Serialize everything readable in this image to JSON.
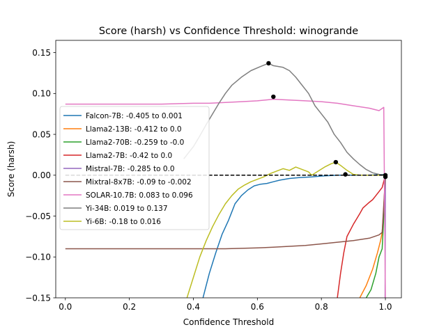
{
  "chart_data": {
    "type": "line",
    "title": "Score (harsh) vs Confidence Threshold: winogrande",
    "xlabel": "Confidence Threshold",
    "ylabel": "Score (harsh)",
    "xlim": [
      -0.03,
      1.05
    ],
    "ylim": [
      -0.15,
      0.165
    ],
    "xticks": [
      0.0,
      0.2,
      0.4,
      0.6,
      0.8,
      1.0
    ],
    "xtick_labels": [
      "0.0",
      "0.2",
      "0.4",
      "0.6",
      "0.8",
      "1.0"
    ],
    "yticks": [
      -0.15,
      -0.1,
      -0.05,
      0.0,
      0.05,
      0.1,
      0.15
    ],
    "ytick_labels": [
      "−0.15",
      "−0.10",
      "−0.05",
      "0.00",
      "0.05",
      "0.10",
      "0.15"
    ],
    "grid": false,
    "legend_position": "center-left",
    "reference_line": {
      "y": 0.0,
      "x_range": [
        0.0,
        1.0
      ],
      "style": "dashed",
      "color": "#000000"
    },
    "series": [
      {
        "name": "Falcon-7B: -0.405 to 0.001",
        "color": "#1f77b4",
        "points": [
          [
            0.43,
            -0.15
          ],
          [
            0.45,
            -0.12
          ],
          [
            0.47,
            -0.095
          ],
          [
            0.49,
            -0.072
          ],
          [
            0.51,
            -0.055
          ],
          [
            0.52,
            -0.045
          ],
          [
            0.53,
            -0.035
          ],
          [
            0.55,
            -0.025
          ],
          [
            0.57,
            -0.018
          ],
          [
            0.59,
            -0.013
          ],
          [
            0.61,
            -0.011
          ],
          [
            0.63,
            -0.01
          ],
          [
            0.65,
            -0.008
          ],
          [
            0.67,
            -0.006
          ],
          [
            0.7,
            -0.004
          ],
          [
            0.73,
            -0.003
          ],
          [
            0.77,
            -0.002
          ],
          [
            0.8,
            -0.001
          ],
          [
            0.85,
            0.0
          ],
          [
            0.9,
            0.0
          ],
          [
            0.95,
            0.0
          ],
          [
            1.0,
            0.001
          ]
        ]
      },
      {
        "name": "Llama2-13B: -0.412 to 0.0",
        "color": "#ff7f0e",
        "points": [
          [
            0.92,
            -0.15
          ],
          [
            0.94,
            -0.135
          ],
          [
            0.96,
            -0.115
          ],
          [
            0.975,
            -0.095
          ],
          [
            0.985,
            -0.08
          ],
          [
            0.99,
            -0.07
          ],
          [
            0.995,
            -0.04
          ],
          [
            1.0,
            0.0
          ]
        ]
      },
      {
        "name": "Llama2-70B: -0.259 to -0.0",
        "color": "#2ca02c",
        "points": [
          [
            0.94,
            -0.15
          ],
          [
            0.955,
            -0.14
          ],
          [
            0.97,
            -0.12
          ],
          [
            0.98,
            -0.1
          ],
          [
            0.99,
            -0.09
          ],
          [
            0.995,
            -0.05
          ],
          [
            1.0,
            -0.0
          ]
        ]
      },
      {
        "name": "Llama2-7B: -0.42 to 0.0",
        "color": "#d62728",
        "points": [
          [
            0.85,
            -0.15
          ],
          [
            0.86,
            -0.12
          ],
          [
            0.87,
            -0.095
          ],
          [
            0.88,
            -0.075
          ],
          [
            0.9,
            -0.06
          ],
          [
            0.92,
            -0.047
          ],
          [
            0.93,
            -0.04
          ],
          [
            0.95,
            -0.033
          ],
          [
            0.96,
            -0.03
          ],
          [
            0.97,
            -0.025
          ],
          [
            0.98,
            -0.02
          ],
          [
            0.99,
            -0.015
          ],
          [
            1.0,
            0.0
          ]
        ]
      },
      {
        "name": "Mistral-7B: -0.285 to 0.0",
        "color": "#9467bd",
        "points": [
          [
            0.999,
            -0.15
          ],
          [
            1.0,
            0.0
          ]
        ]
      },
      {
        "name": "Mixtral-8x7B: -0.09 to -0.002",
        "color": "#8c564b",
        "points": [
          [
            0.0,
            -0.09
          ],
          [
            0.1,
            -0.09
          ],
          [
            0.2,
            -0.09
          ],
          [
            0.3,
            -0.09
          ],
          [
            0.4,
            -0.09
          ],
          [
            0.5,
            -0.09
          ],
          [
            0.6,
            -0.089
          ],
          [
            0.65,
            -0.088
          ],
          [
            0.7,
            -0.087
          ],
          [
            0.75,
            -0.086
          ],
          [
            0.8,
            -0.084
          ],
          [
            0.85,
            -0.082
          ],
          [
            0.9,
            -0.08
          ],
          [
            0.95,
            -0.077
          ],
          [
            0.98,
            -0.073
          ],
          [
            0.99,
            -0.07
          ],
          [
            1.0,
            -0.002
          ]
        ]
      },
      {
        "name": "SOLAR-10.7B: 0.083 to 0.096",
        "color": "#e377c2",
        "points": [
          [
            0.0,
            0.087
          ],
          [
            0.1,
            0.087
          ],
          [
            0.2,
            0.087
          ],
          [
            0.3,
            0.087
          ],
          [
            0.4,
            0.088
          ],
          [
            0.45,
            0.088
          ],
          [
            0.5,
            0.089
          ],
          [
            0.55,
            0.09
          ],
          [
            0.6,
            0.091
          ],
          [
            0.65,
            0.093
          ],
          [
            0.7,
            0.092
          ],
          [
            0.75,
            0.091
          ],
          [
            0.8,
            0.09
          ],
          [
            0.85,
            0.088
          ],
          [
            0.9,
            0.085
          ],
          [
            0.95,
            0.082
          ],
          [
            0.98,
            0.079
          ],
          [
            0.995,
            0.083
          ],
          [
            1.0,
            -0.15
          ]
        ]
      },
      {
        "name": "Yi-34B: 0.019 to 0.137",
        "color": "#7f7f7f",
        "points": [
          [
            0.37,
            0.02
          ],
          [
            0.4,
            0.035
          ],
          [
            0.42,
            0.048
          ],
          [
            0.44,
            0.062
          ],
          [
            0.46,
            0.075
          ],
          [
            0.48,
            0.088
          ],
          [
            0.5,
            0.1
          ],
          [
            0.52,
            0.11
          ],
          [
            0.55,
            0.12
          ],
          [
            0.58,
            0.128
          ],
          [
            0.61,
            0.133
          ],
          [
            0.635,
            0.137
          ],
          [
            0.65,
            0.134
          ],
          [
            0.68,
            0.132
          ],
          [
            0.7,
            0.128
          ],
          [
            0.72,
            0.12
          ],
          [
            0.74,
            0.11
          ],
          [
            0.76,
            0.1
          ],
          [
            0.78,
            0.085
          ],
          [
            0.8,
            0.075
          ],
          [
            0.82,
            0.065
          ],
          [
            0.84,
            0.05
          ],
          [
            0.86,
            0.04
          ],
          [
            0.88,
            0.028
          ],
          [
            0.9,
            0.02
          ],
          [
            0.92,
            0.013
          ],
          [
            0.94,
            0.007
          ],
          [
            0.96,
            0.003
          ],
          [
            0.98,
            0.001
          ],
          [
            1.0,
            0.0
          ]
        ]
      },
      {
        "name": "Yi-6B: -0.18 to 0.016",
        "color": "#bcbd22",
        "points": [
          [
            0.38,
            -0.15
          ],
          [
            0.4,
            -0.125
          ],
          [
            0.42,
            -0.1
          ],
          [
            0.44,
            -0.08
          ],
          [
            0.46,
            -0.063
          ],
          [
            0.48,
            -0.048
          ],
          [
            0.5,
            -0.035
          ],
          [
            0.52,
            -0.025
          ],
          [
            0.54,
            -0.017
          ],
          [
            0.56,
            -0.012
          ],
          [
            0.58,
            -0.008
          ],
          [
            0.6,
            -0.005
          ],
          [
            0.62,
            -0.002
          ],
          [
            0.64,
            0.002
          ],
          [
            0.66,
            0.005
          ],
          [
            0.68,
            0.008
          ],
          [
            0.7,
            0.006
          ],
          [
            0.72,
            0.01
          ],
          [
            0.74,
            0.007
          ],
          [
            0.76,
            0.004
          ],
          [
            0.77,
            0.0
          ],
          [
            0.79,
            0.005
          ],
          [
            0.81,
            0.01
          ],
          [
            0.83,
            0.014
          ],
          [
            0.845,
            0.016
          ],
          [
            0.86,
            0.012
          ],
          [
            0.88,
            0.006
          ],
          [
            0.9,
            0.001
          ],
          [
            0.92,
            0.0
          ],
          [
            0.96,
            0.0
          ],
          [
            1.0,
            0.0
          ]
        ]
      }
    ],
    "peak_markers": [
      {
        "x": 0.635,
        "y": 0.137
      },
      {
        "x": 0.65,
        "y": 0.096
      },
      {
        "x": 0.845,
        "y": 0.016
      },
      {
        "x": 0.875,
        "y": 0.001
      },
      {
        "x": 1.0,
        "y": 0.0
      },
      {
        "x": 1.0,
        "y": -0.002
      }
    ]
  }
}
